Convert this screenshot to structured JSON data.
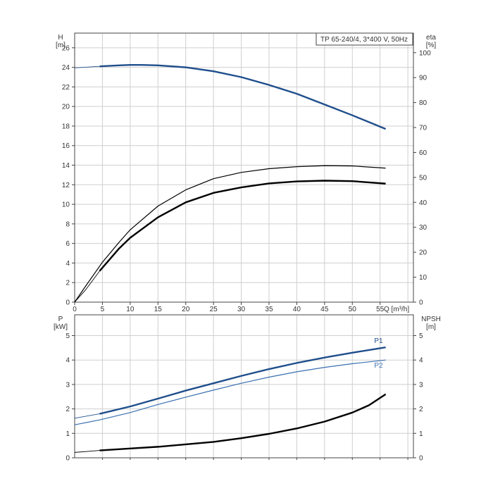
{
  "chart_data": [
    {
      "id": "top",
      "type": "line",
      "title": "TP 65-240/4, 3*400 V, 50Hz",
      "left_axis": {
        "label_line1": "H",
        "label_line2": "[m]",
        "ticks": [
          0,
          2,
          4,
          6,
          8,
          10,
          12,
          14,
          16,
          18,
          20,
          22,
          24,
          26
        ],
        "range": [
          0,
          27.5
        ]
      },
      "right_axis": {
        "label_line1": "eta",
        "label_line2": "[%]",
        "ticks": [
          0,
          10,
          20,
          30,
          40,
          50,
          60,
          70,
          80,
          90,
          100
        ],
        "range": [
          0,
          107.84
        ]
      },
      "x_axis": {
        "label": "Q [m³/h]",
        "ticks": [
          0,
          5,
          10,
          15,
          20,
          25,
          30,
          35,
          40,
          45,
          50,
          55
        ],
        "range": [
          0,
          61
        ]
      },
      "grid": true,
      "series": [
        {
          "key": "H",
          "axis": "left",
          "color": "#1f4e8c",
          "thin_segment_end_x": 4.5,
          "points": [
            [
              0,
              23.95
            ],
            [
              4.5,
              24.1
            ],
            [
              8,
              24.2
            ],
            [
              10,
              24.25
            ],
            [
              12,
              24.25
            ],
            [
              15,
              24.2
            ],
            [
              20,
              24.0
            ],
            [
              25,
              23.6
            ],
            [
              30,
              23.0
            ],
            [
              35,
              22.2
            ],
            [
              40,
              21.3
            ],
            [
              45,
              20.2
            ],
            [
              50,
              19.1
            ],
            [
              53,
              18.4
            ],
            [
              56,
              17.7
            ]
          ]
        },
        {
          "key": "eta_upper",
          "axis": "right",
          "color": "#000000",
          "points": [
            [
              0,
              0
            ],
            [
              2,
              6.5
            ],
            [
              5,
              16
            ],
            [
              8,
              24
            ],
            [
              10,
              29
            ],
            [
              15,
              38.5
            ],
            [
              20,
              45
            ],
            [
              25,
              49.5
            ],
            [
              30,
              52
            ],
            [
              35,
              53.5
            ],
            [
              40,
              54.3
            ],
            [
              45,
              54.7
            ],
            [
              50,
              54.6
            ],
            [
              56,
              53.7
            ]
          ]
        },
        {
          "key": "eta",
          "axis": "right",
          "color": "#000000",
          "thin_segment_end_x": 4.5,
          "points": [
            [
              0,
              0
            ],
            [
              2,
              5
            ],
            [
              4.5,
              12.5
            ],
            [
              8,
              21.5
            ],
            [
              10,
              25.8
            ],
            [
              15,
              34
            ],
            [
              20,
              40
            ],
            [
              25,
              43.8
            ],
            [
              30,
              46
            ],
            [
              35,
              47.6
            ],
            [
              40,
              48.4
            ],
            [
              45,
              48.7
            ],
            [
              50,
              48.5
            ],
            [
              56,
              47.5
            ]
          ]
        }
      ]
    },
    {
      "id": "bottom",
      "type": "line",
      "left_axis": {
        "label_line1": "P",
        "label_line2": "[kW]",
        "ticks": [
          0,
          1,
          2,
          3,
          4,
          5
        ],
        "range": [
          0,
          5.85
        ]
      },
      "right_axis": {
        "label_line1": "NPSH",
        "label_line2": "[m]",
        "ticks": [
          0,
          1,
          2,
          3,
          4,
          5
        ],
        "range": [
          0,
          5.85
        ]
      },
      "x_axis": {
        "range": [
          0,
          61
        ]
      },
      "grid": true,
      "series": [
        {
          "key": "P1",
          "name": "P1",
          "axis": "left",
          "color": "#1f4e8c",
          "thin_segment_end_x": 4.5,
          "points": [
            [
              0,
              1.62
            ],
            [
              4.5,
              1.8
            ],
            [
              10,
              2.1
            ],
            [
              15,
              2.42
            ],
            [
              20,
              2.75
            ],
            [
              25,
              3.05
            ],
            [
              30,
              3.35
            ],
            [
              35,
              3.63
            ],
            [
              40,
              3.88
            ],
            [
              45,
              4.1
            ],
            [
              50,
              4.3
            ],
            [
              56,
              4.52
            ]
          ]
        },
        {
          "key": "P2",
          "name": "P2",
          "axis": "left",
          "color": "#3a6fb0",
          "points": [
            [
              0,
              1.35
            ],
            [
              4.5,
              1.55
            ],
            [
              10,
              1.85
            ],
            [
              15,
              2.18
            ],
            [
              20,
              2.48
            ],
            [
              25,
              2.77
            ],
            [
              30,
              3.05
            ],
            [
              35,
              3.3
            ],
            [
              40,
              3.52
            ],
            [
              45,
              3.7
            ],
            [
              50,
              3.85
            ],
            [
              56,
              4.0
            ]
          ]
        },
        {
          "key": "NPSH",
          "axis": "right",
          "color": "#000000",
          "thin_segment_end_x": 4.5,
          "points": [
            [
              0,
              0.22
            ],
            [
              4.5,
              0.3
            ],
            [
              10,
              0.38
            ],
            [
              15,
              0.45
            ],
            [
              20,
              0.55
            ],
            [
              25,
              0.65
            ],
            [
              30,
              0.8
            ],
            [
              35,
              0.98
            ],
            [
              40,
              1.2
            ],
            [
              45,
              1.48
            ],
            [
              50,
              1.85
            ],
            [
              53,
              2.15
            ],
            [
              56,
              2.6
            ]
          ]
        }
      ]
    }
  ]
}
